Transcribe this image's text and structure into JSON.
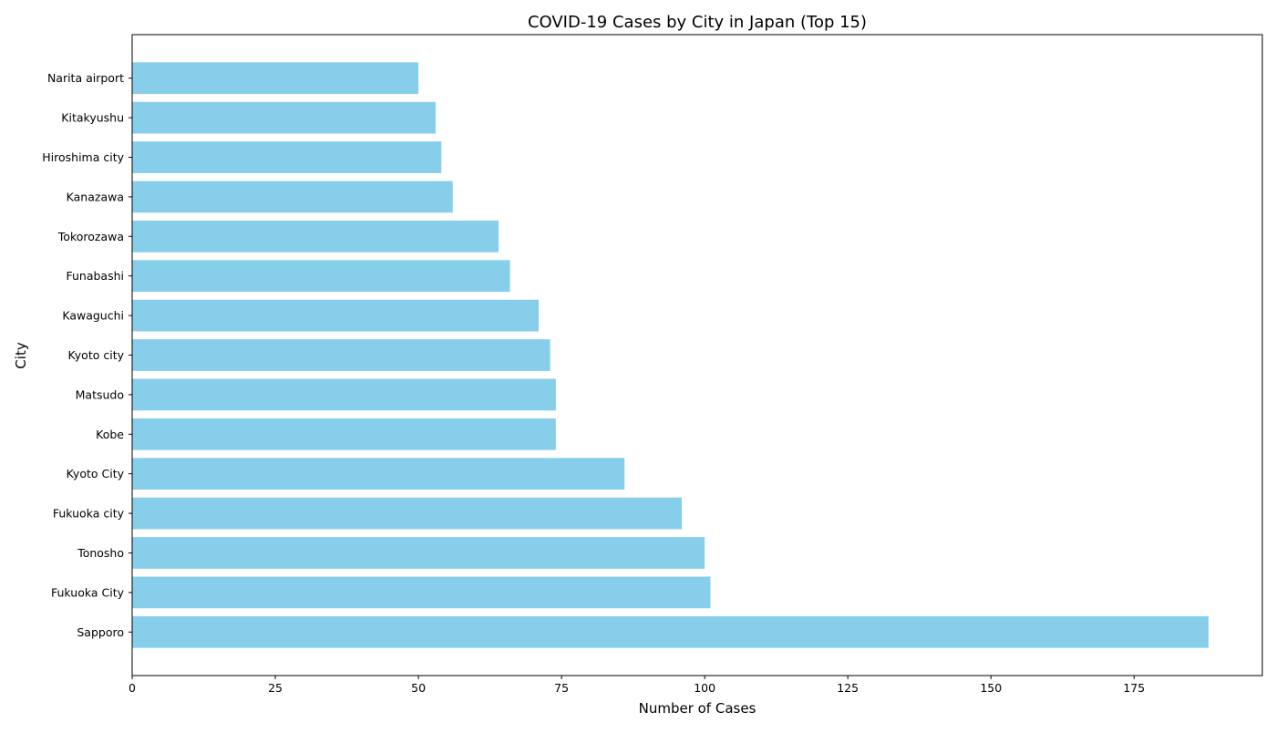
{
  "chart_data": {
    "type": "bar",
    "orientation": "horizontal",
    "title": "COVID-19 Cases by City in Japan (Top 15)",
    "xlabel": "Number of Cases",
    "ylabel": "City",
    "categories": [
      "Sapporo",
      "Fukuoka City",
      "Tonosho",
      "Fukuoka city",
      "Kyoto City",
      "Kobe",
      "Matsudo",
      "Kyoto city",
      "Kawaguchi",
      "Funabashi",
      "Tokorozawa",
      "Kanazawa",
      "Hiroshima city",
      "Kitakyushu",
      "Narita airport"
    ],
    "values": [
      188,
      101,
      100,
      96,
      86,
      74,
      74,
      73,
      71,
      66,
      64,
      56,
      54,
      53,
      50
    ],
    "xlim": [
      0,
      197.4
    ],
    "xticks": [
      0,
      25,
      50,
      75,
      100,
      125,
      150,
      175
    ],
    "bar_color": "#87CEEB",
    "grid": false,
    "legend": "none"
  }
}
